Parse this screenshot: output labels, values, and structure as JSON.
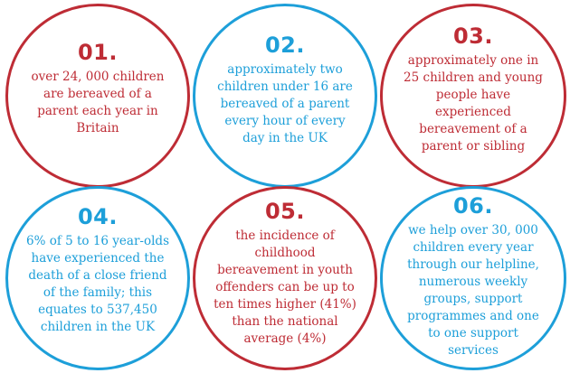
{
  "colors": {
    "red": "#be2c35",
    "blue": "#1d9fd9"
  },
  "facts": [
    {
      "number": "01.",
      "color": "red",
      "lines": [
        "over 24, 000 children",
        "are bereaved of a",
        "parent each year in",
        "Britain"
      ]
    },
    {
      "number": "02.",
      "color": "blue",
      "lines": [
        "approximately two",
        "children under 16 are",
        "bereaved of a parent",
        "every hour of every",
        "day in the UK"
      ]
    },
    {
      "number": "03.",
      "color": "red",
      "lines": [
        "approximately one in",
        "25 children and young",
        "people have",
        "experienced",
        "bereavement of a",
        "parent or sibling"
      ]
    },
    {
      "number": "04.",
      "color": "blue",
      "lines": [
        "6% of 5 to 16 year-olds",
        "have experienced the",
        "death of a close friend",
        "of the family; this",
        "equates to 537,450",
        "children in the UK"
      ]
    },
    {
      "number": "05.",
      "color": "red",
      "lines": [
        "the incidence of",
        "childhood",
        "bereavement in youth",
        "offenders can be up to",
        "ten times higher (41%)",
        "than the national",
        "average (4%)"
      ]
    },
    {
      "number": "06.",
      "color": "blue",
      "lines": [
        "we help over 30, 000",
        "children every year",
        "through our helpline,",
        "numerous weekly",
        "groups, support",
        "programmes and one",
        "to one support",
        "services"
      ]
    }
  ]
}
